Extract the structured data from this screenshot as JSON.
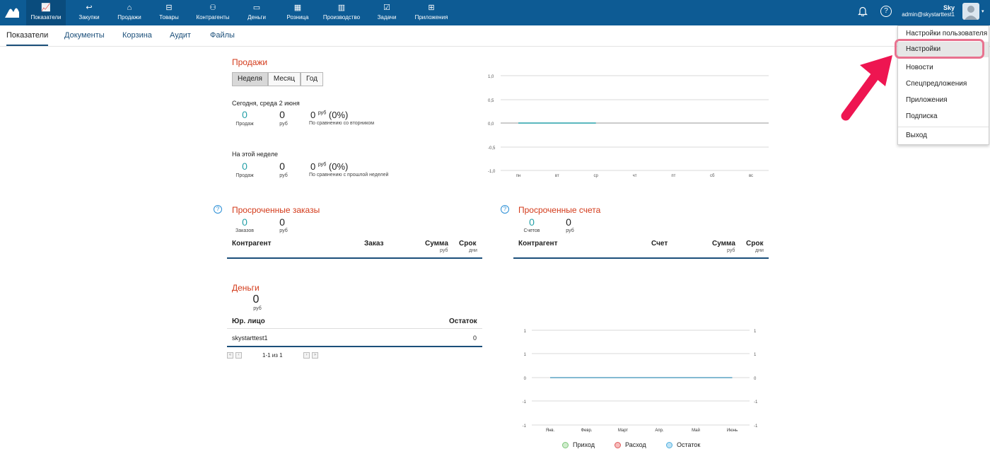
{
  "nav": {
    "items": [
      {
        "label": "Показатели",
        "icon": "chart-icon",
        "glyph": "📈"
      },
      {
        "label": "Закупки",
        "icon": "purchase-icon",
        "glyph": "↩"
      },
      {
        "label": "Продажи",
        "icon": "bag-icon",
        "glyph": "⌂"
      },
      {
        "label": "Товары",
        "icon": "cart-icon",
        "glyph": "⊟"
      },
      {
        "label": "Контрагенты",
        "icon": "people-icon",
        "glyph": "⚇"
      },
      {
        "label": "Деньги",
        "icon": "wallet-icon",
        "glyph": "▭"
      },
      {
        "label": "Розница",
        "icon": "register-icon",
        "glyph": "▦"
      },
      {
        "label": "Производство",
        "icon": "factory-icon",
        "glyph": "▥"
      },
      {
        "label": "Задачи",
        "icon": "task-icon",
        "glyph": "☑"
      },
      {
        "label": "Приложения",
        "icon": "apps-icon",
        "glyph": "⊞"
      }
    ],
    "bell_glyph": "🔔",
    "help_glyph": "?",
    "user_name": "Sky",
    "user_email": "admin@skystarttest1",
    "caret": "▾"
  },
  "subtabs": [
    "Показатели",
    "Документы",
    "Корзина",
    "Аудит",
    "Файлы"
  ],
  "sales": {
    "title": "Продажи",
    "periods": [
      "Неделя",
      "Месяц",
      "Год"
    ],
    "today_label": "Сегодня, среда 2 июня",
    "week_label": "На этой неделе",
    "today": {
      "count": "0",
      "count_cap": "Продаж",
      "sum": "0",
      "sum_cap": "руб",
      "cmp_value": "0",
      "cmp_unit": "руб",
      "cmp_pct": "(0%)",
      "cmp_note": "По сравнению со вторником"
    },
    "week": {
      "count": "0",
      "count_cap": "Продаж",
      "sum": "0",
      "sum_cap": "руб",
      "cmp_value": "0",
      "cmp_unit": "руб",
      "cmp_pct": "(0%)",
      "cmp_note": "По сравнению с прошлой неделей"
    }
  },
  "overdue_orders": {
    "title": "Просроченные заказы",
    "help": "?",
    "count": "0",
    "count_cap": "Заказов",
    "sum": "0",
    "sum_cap": "руб",
    "col_party": "Контрагент",
    "col_doc": "Заказ",
    "col_sum": "Сумма",
    "col_sum_sub": "руб",
    "col_term": "Срок",
    "col_term_sub": "дни"
  },
  "overdue_invoices": {
    "title": "Просроченные счета",
    "help": "?",
    "count": "0",
    "count_cap": "Счетов",
    "sum": "0",
    "sum_cap": "руб",
    "col_party": "Контрагент",
    "col_doc": "Счет",
    "col_sum": "Сумма",
    "col_sum_sub": "руб",
    "col_term": "Срок",
    "col_term_sub": "дни"
  },
  "money": {
    "title": "Деньги",
    "total": "0",
    "total_cap": "руб",
    "col_entity": "Юр. лицо",
    "col_balance": "Остаток",
    "rows": [
      {
        "entity": "skystarttest1",
        "balance": "0"
      }
    ],
    "pager_text": "1-1 из 1",
    "pager_first": "«",
    "pager_prev": "‹",
    "pager_next": "›",
    "pager_last": "»"
  },
  "dropdown": {
    "items": [
      "Настройки пользователя",
      "Настройки",
      "Новости",
      "Спецпредложения",
      "Приложения",
      "Подписка",
      "Выход"
    ],
    "hovered": "Настройки"
  },
  "chart_data": [
    {
      "type": "line",
      "categories": [
        "пн",
        "вт",
        "ср",
        "чт",
        "пт",
        "сб",
        "вс"
      ],
      "y_ticks": [
        "1,0",
        "0,5",
        "0,0",
        "-0,5",
        "-1,0"
      ],
      "ylim": [
        -1,
        1
      ],
      "series": [
        {
          "values": [
            0,
            0,
            0,
            0,
            0,
            0,
            0
          ],
          "color": "#25a0a8"
        }
      ]
    },
    {
      "type": "line",
      "categories": [
        "Янв.",
        "Февр.",
        "Март",
        "Апр.",
        "Май",
        "Июнь"
      ],
      "y_ticks": [
        "1",
        "1",
        "0",
        "-1",
        "-1"
      ],
      "ylim": [
        -1,
        1
      ],
      "legend": "bottom",
      "series": [
        {
          "name": "Приход",
          "values": [
            0,
            0,
            0,
            0,
            0,
            0
          ],
          "color": "#7dc67a"
        },
        {
          "name": "Расход",
          "values": [
            0,
            0,
            0,
            0,
            0,
            0
          ],
          "color": "#e05a5a"
        },
        {
          "name": "Остаток",
          "values": [
            0,
            0,
            0,
            0,
            0,
            0
          ],
          "color": "#4fb0e0"
        }
      ]
    }
  ],
  "annotation": {
    "arrow_color": "#ee1551",
    "ring_color": "#e8728f"
  }
}
